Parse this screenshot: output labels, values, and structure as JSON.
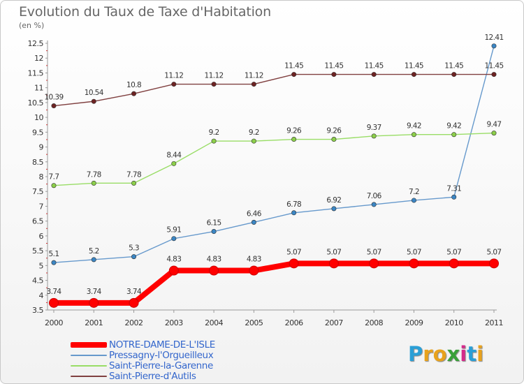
{
  "title": "Evolution du Taux de Taxe d'Habitation",
  "subtitle": "(en %)",
  "logo": {
    "letters": [
      "P",
      "r",
      "o",
      "x",
      "i",
      "t",
      "i"
    ],
    "colors": [
      "#2a9fd6",
      "#e8a21c",
      "#e8a21c",
      "#3aa03a",
      "#d42a8a",
      "#2a9fd6",
      "#e8a21c"
    ]
  },
  "chart_data": {
    "type": "line",
    "title": "Evolution du Taux de Taxe d'Habitation",
    "ylabel": "(en %)",
    "x": [
      "2000",
      "2001",
      "2002",
      "2003",
      "2004",
      "2005",
      "2006",
      "2007",
      "2008",
      "2009",
      "2010",
      "2011"
    ],
    "ylim": [
      3.5,
      12.5
    ],
    "yticks": [
      "3.5",
      "4",
      "4.5",
      "5",
      "5.5",
      "6",
      "6.5",
      "7",
      "7.5",
      "8",
      "8.5",
      "9",
      "9.5",
      "10",
      "10.5",
      "11",
      "11.5",
      "12",
      "12.5"
    ],
    "grid": false,
    "legend_position": "bottom-left",
    "series": [
      {
        "name": "NOTRE-DAME-DE-L'ISLE",
        "color": "#ff0000",
        "emphasis": true,
        "values": [
          3.74,
          3.74,
          3.74,
          4.83,
          4.83,
          4.83,
          5.07,
          5.07,
          5.07,
          5.07,
          5.07,
          5.07
        ],
        "labels": [
          "3.74",
          "3.74",
          "3.74",
          "4.83",
          "4.83",
          "4.83",
          "5.07",
          "5.07",
          "5.07",
          "5.07",
          "5.07",
          "5.07"
        ]
      },
      {
        "name": "Pressagny-l'Orgueilleux",
        "color": "#6699cc",
        "marker": "#3b86c4",
        "values": [
          5.1,
          5.2,
          5.3,
          5.91,
          6.15,
          6.46,
          6.78,
          6.92,
          7.06,
          7.2,
          7.31,
          12.41
        ],
        "labels": [
          "5.1",
          "5.2",
          "5.3",
          "5.91",
          "6.15",
          "6.46",
          "6.78",
          "6.92",
          "7.06",
          "7.2",
          "7.31",
          "12.41"
        ]
      },
      {
        "name": "Saint-Pierre-la-Garenne",
        "color": "#99dd66",
        "marker": "#8ccf4a",
        "values": [
          7.7,
          7.78,
          7.78,
          8.44,
          9.2,
          9.2,
          9.26,
          9.26,
          9.37,
          9.42,
          9.42,
          9.47
        ],
        "labels": [
          "7.7",
          "7.78",
          "7.78",
          "8.44",
          "9.2",
          "9.2",
          "9.26",
          "9.26",
          "9.37",
          "9.42",
          "9.42",
          "9.47"
        ]
      },
      {
        "name": "Saint-Pierre-d'Autils",
        "color": "#804040",
        "marker": "#6e2323",
        "values": [
          10.39,
          10.54,
          10.8,
          11.12,
          11.12,
          11.12,
          11.45,
          11.45,
          11.45,
          11.45,
          11.45,
          11.45
        ],
        "labels": [
          "10.39",
          "10.54",
          "10.8",
          "11.12",
          "11.12",
          "11.12",
          "11.45",
          "11.45",
          "11.45",
          "11.45",
          "11.45",
          "11.45"
        ]
      }
    ]
  }
}
